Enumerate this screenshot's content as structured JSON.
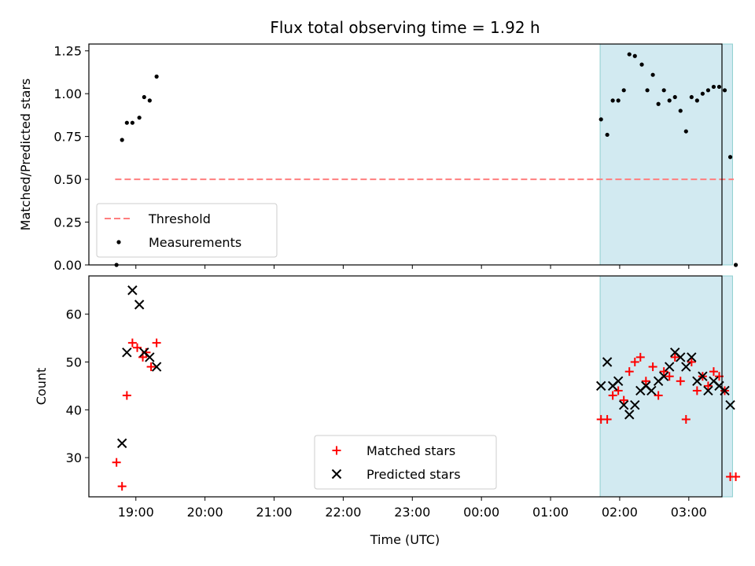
{
  "chart_data": {
    "type": "scatter",
    "title": "Flux total observing time = 1.92 h",
    "xlabel": "Time (UTC)",
    "x_ticks": [
      "19:00",
      "20:00",
      "21:00",
      "22:00",
      "23:00",
      "00:00",
      "01:00",
      "02:00",
      "03:00"
    ],
    "x_unit": "hours from 19:00 UTC",
    "xlim": [
      -0.68,
      8.48
    ],
    "highlight_span": [
      6.717,
      8.633
    ],
    "highlight_color": "#add8e6",
    "panels": [
      {
        "ylabel": "Matched/Predicted stars",
        "ylim": [
          0.0,
          1.29
        ],
        "y_ticks": [
          "0.00",
          "0.25",
          "0.50",
          "0.75",
          "1.00",
          "1.25"
        ],
        "legend": {
          "placement": "lower-left"
        },
        "series": [
          {
            "name": "Threshold",
            "kind": "dashed-line",
            "color": "#ff7f7f",
            "x": [
              -0.3,
              8.65
            ],
            "y": [
              0.5,
              0.5
            ]
          },
          {
            "name": "Measurements",
            "kind": "dot",
            "color": "#000000",
            "x": [
              -0.28,
              -0.2,
              -0.13,
              -0.05,
              0.05,
              0.12,
              0.2,
              0.3,
              6.73,
              6.82,
              6.9,
              6.98,
              7.06,
              7.14,
              7.22,
              7.32,
              7.4,
              7.48,
              7.56,
              7.64,
              7.72,
              7.8,
              7.88,
              7.96,
              8.04,
              8.12,
              8.2,
              8.28,
              8.36,
              8.44,
              8.52,
              8.6,
              8.68
            ],
            "y": [
              0.0,
              0.73,
              0.83,
              0.83,
              0.86,
              0.98,
              0.96,
              1.1,
              0.85,
              0.76,
              0.96,
              0.96,
              1.02,
              1.23,
              1.22,
              1.17,
              1.02,
              1.11,
              0.94,
              1.02,
              0.96,
              0.98,
              0.9,
              0.78,
              0.98,
              0.96,
              1.0,
              1.02,
              1.04,
              1.04,
              1.02,
              0.63,
              0.0
            ]
          }
        ]
      },
      {
        "ylabel": "Count",
        "ylim": [
          21.8,
          68.0
        ],
        "y_ticks": [
          "30",
          "40",
          "50",
          "60"
        ],
        "legend": {
          "placement": "lower-center"
        },
        "series": [
          {
            "name": "Matched stars",
            "kind": "plus",
            "color": "#ff0000",
            "x": [
              -0.28,
              -0.2,
              -0.13,
              -0.05,
              0.02,
              0.1,
              0.15,
              0.22,
              0.3,
              6.73,
              6.82,
              6.9,
              6.98,
              7.06,
              7.14,
              7.22,
              7.3,
              7.38,
              7.48,
              7.56,
              7.64,
              7.72,
              7.8,
              7.88,
              7.96,
              8.04,
              8.12,
              8.2,
              8.28,
              8.36,
              8.44,
              8.52,
              8.6,
              8.68
            ],
            "y": [
              29,
              24,
              43,
              54,
              53,
              51,
              52,
              49,
              54,
              38,
              38,
              43,
              44,
              42,
              48,
              50,
              51,
              46,
              49,
              43,
              48,
              47,
              51,
              46,
              38,
              50,
              44,
              47,
              45,
              48,
              47,
              44,
              26,
              26
            ]
          },
          {
            "name": "Predicted stars",
            "kind": "x",
            "color": "#000000",
            "x": [
              -0.2,
              -0.13,
              -0.05,
              0.05,
              0.12,
              0.2,
              0.3,
              6.73,
              6.82,
              6.9,
              6.98,
              7.06,
              7.14,
              7.22,
              7.3,
              7.38,
              7.46,
              7.56,
              7.64,
              7.72,
              7.8,
              7.88,
              7.96,
              8.04,
              8.12,
              8.2,
              8.28,
              8.36,
              8.44,
              8.52,
              8.6
            ],
            "y": [
              33,
              52,
              65,
              62,
              52,
              51,
              49,
              45,
              50,
              45,
              46,
              41,
              39,
              41,
              44,
              45,
              44,
              46,
              47,
              49,
              52,
              51,
              49,
              51,
              46,
              47,
              44,
              46,
              45,
              44,
              41
            ]
          }
        ]
      }
    ]
  }
}
